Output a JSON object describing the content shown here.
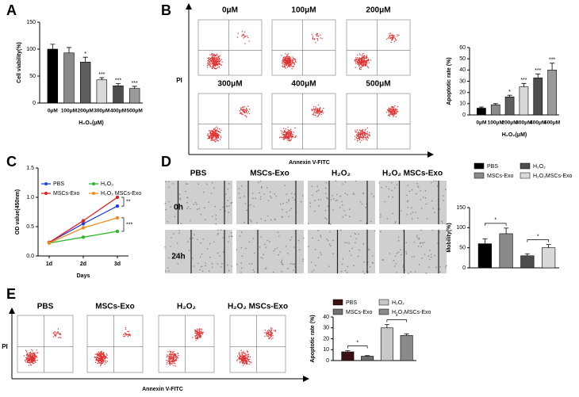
{
  "panels": [
    "A",
    "B",
    "C",
    "D",
    "E"
  ],
  "flow_B": {
    "conditions": [
      "0μM",
      "100μM",
      "200μM",
      "300μM",
      "400μM",
      "500μM"
    ],
    "y_label": "PI",
    "x_label": "Annexin V-FITC"
  },
  "wound_D": {
    "columns": [
      "PBS",
      "MSCs-Exo",
      "H₂O₂",
      "H₂O₂ MSCs-Exo"
    ],
    "rows": [
      "0h",
      "24h"
    ]
  },
  "flow_E": {
    "conditions": [
      "PBS",
      "MSCs-Exo",
      "H₂O₂",
      "H₂O₂ MSCs-Exo"
    ],
    "y_label": "PI",
    "x_label": "Annexin V-FITC"
  },
  "chart_data": [
    {
      "type": "bar",
      "y_label": "Cell viability(%)",
      "x_label": "H₂O₂(μM)",
      "categories": [
        "0μM",
        "100μM",
        "200μM",
        "300μM",
        "400μM",
        "500μM"
      ],
      "values": [
        100,
        93,
        76,
        43,
        32,
        27
      ],
      "errors": [
        9,
        10,
        9,
        4,
        4,
        4
      ],
      "colors": [
        "#000000",
        "#8a8a8a",
        "#5e5e5e",
        "#d9d9d9",
        "#4d4d4d",
        "#9a9a9a"
      ],
      "annotations": [
        null,
        null,
        "*",
        "***",
        "***",
        "***"
      ],
      "ylim": [
        0,
        150
      ],
      "yticks": [
        0,
        50,
        100,
        150
      ]
    },
    {
      "type": "bar",
      "y_label": "Apoptotic rate (%)",
      "x_label": "H₂O₂(μM)",
      "categories": [
        "0μM",
        "100μM",
        "200μM",
        "300μM",
        "400μM",
        "500μM"
      ],
      "values": [
        6,
        9,
        16,
        25,
        33,
        40
      ],
      "errors": [
        1,
        1,
        1.5,
        3,
        3.5,
        6
      ],
      "colors": [
        "#000000",
        "#8a8a8a",
        "#5e5e5e",
        "#d9d9d9",
        "#4d4d4d",
        "#9a9a9a"
      ],
      "annotations": [
        null,
        null,
        "*",
        "***",
        "***",
        "***"
      ],
      "ylim": [
        0,
        60
      ],
      "yticks": [
        0,
        10,
        20,
        30,
        40,
        50,
        60
      ]
    },
    {
      "type": "line",
      "y_label": "OD value(450nm)",
      "x_label": "Days",
      "categories": [
        "1d",
        "2d",
        "3d"
      ],
      "series": [
        {
          "name": "PBS",
          "color": "#1f3fe0",
          "values": [
            0.23,
            0.55,
            0.85
          ]
        },
        {
          "name": "MSCs-Exo",
          "color": "#e02020",
          "values": [
            0.23,
            0.6,
            1.0
          ]
        },
        {
          "name": "H₂O₂",
          "color": "#2db82d",
          "values": [
            0.22,
            0.32,
            0.42
          ]
        },
        {
          "name": "H₂O₂ MSCs-Exo",
          "color": "#f08c1e",
          "values": [
            0.22,
            0.48,
            0.65
          ]
        }
      ],
      "annotations": [
        "**",
        "***"
      ],
      "ylim": [
        0,
        1.5
      ],
      "yticks": [
        {
          "value": 0,
          "label": "0.0"
        },
        0.5,
        {
          "value": 1,
          "label": "1.0"
        },
        1.5
      ]
    },
    {
      "type": "bar",
      "y_label": "Mobility(%)",
      "series": [
        {
          "name": "PBS",
          "color": "#000000",
          "values": [
            60
          ],
          "errors": [
            12
          ]
        },
        {
          "name": "MSCs-Exo",
          "color": "#8a8a8a",
          "values": [
            85
          ],
          "errors": [
            14
          ]
        },
        {
          "name": "H₂O₂",
          "color": "#4d4d4d",
          "values": [
            30
          ],
          "errors": [
            5
          ]
        },
        {
          "name": "H₂O₂MSCs-Exo",
          "color": "#d9d9d9",
          "values": [
            50
          ],
          "errors": [
            8
          ]
        }
      ],
      "annotations": [
        "*",
        "*"
      ],
      "ylim": [
        0,
        150
      ],
      "yticks": [
        0,
        50,
        100,
        150
      ]
    },
    {
      "type": "bar",
      "y_label": "Apoptotic rate (%)",
      "series": [
        {
          "name": "PBS",
          "color": "#3a1010",
          "values": [
            8
          ],
          "errors": [
            1
          ]
        },
        {
          "name": "MSCs-Exo",
          "color": "#707070",
          "values": [
            4
          ],
          "errors": [
            0.5
          ]
        },
        {
          "name": "H₂O₂",
          "color": "#c8c8c8",
          "values": [
            30
          ],
          "errors": [
            3
          ]
        },
        {
          "name": "H₂O₂MSCs-Exo",
          "color": "#8a8a8a",
          "values": [
            23
          ],
          "errors": [
            1.5
          ]
        }
      ],
      "annotations": [
        "*",
        "*"
      ],
      "ylim": [
        0,
        40
      ],
      "yticks": [
        0,
        10,
        20,
        30,
        40
      ]
    }
  ]
}
